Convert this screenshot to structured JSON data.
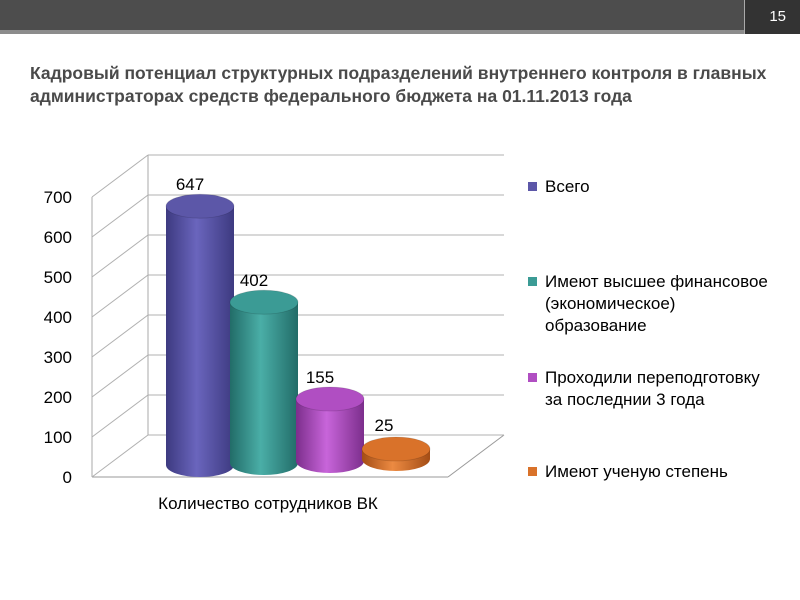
{
  "slide": {
    "page_number": "15",
    "title": "Кадровый потенциал структурных подразделений  внутреннего контроля в главных администраторах средств федерального бюджета на 01.11.2013 года"
  },
  "chart_data": {
    "type": "bar",
    "categories": [
      "Количество сотрудников ВК"
    ],
    "series": [
      {
        "name": "Всего",
        "values": [
          647
        ],
        "color": "#5c57a8"
      },
      {
        "name": "Имеют высшее финансовое (экономическое) образование",
        "values": [
          402
        ],
        "color": "#3b9b95"
      },
      {
        "name": "Проходили переподготовку за последнии 3 года",
        "values": [
          155
        ],
        "color": "#b04ec2"
      },
      {
        "name": "Имеют ученую степень",
        "values": [
          25
        ],
        "color": "#d9722a"
      }
    ],
    "ylim": [
      0,
      700
    ],
    "yticks": [
      "0",
      "100",
      "200",
      "300",
      "400",
      "500",
      "600",
      "700"
    ],
    "data_labels": [
      "647",
      "402",
      "155",
      "25"
    ],
    "grid": true,
    "style": "3d-cylinder",
    "legend_position": "right"
  }
}
